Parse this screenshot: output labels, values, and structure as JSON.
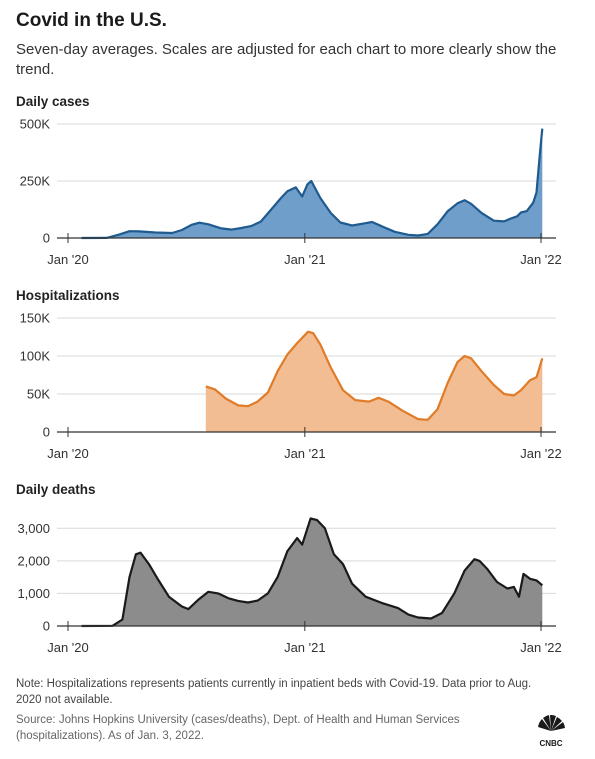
{
  "title": "Covid in the U.S.",
  "subtitle": "Seven-day averages. Scales are adjusted for each chart to more clearly show the trend.",
  "note": "Note: Hospitalizations represents patients currently in inpatient beds with Covid-19. Data prior to Aug. 2020 not available.",
  "source": "Source: Johns Hopkins University (cases/deaths), Dept. of Health and Human Services (hospitalizations). As of Jan. 3, 2022.",
  "logo_text": "CNBC",
  "chart_data": [
    {
      "type": "area",
      "title": "Daily cases",
      "color_line": "#1f5b8f",
      "color_fill": "#6e9ec9",
      "x_ticks": [
        "Jan '20",
        "Jan '21",
        "Jan '22"
      ],
      "x_tick_dates": [
        "2020-01-01",
        "2021-01-01",
        "2022-01-01"
      ],
      "y_ticks": [
        0,
        250000,
        500000
      ],
      "y_tick_labels": [
        "0",
        "250K",
        "500K"
      ],
      "ylim": [
        0,
        500000
      ],
      "xlim": [
        "2020-01-01",
        "2022-01-03"
      ],
      "grid": true,
      "points": [
        [
          "2020-01-22",
          0
        ],
        [
          "2020-03-01",
          500
        ],
        [
          "2020-03-20",
          15000
        ],
        [
          "2020-04-05",
          30000
        ],
        [
          "2020-04-20",
          29000
        ],
        [
          "2020-05-15",
          24000
        ],
        [
          "2020-06-10",
          22000
        ],
        [
          "2020-06-25",
          35000
        ],
        [
          "2020-07-10",
          58000
        ],
        [
          "2020-07-22",
          67000
        ],
        [
          "2020-08-05",
          60000
        ],
        [
          "2020-08-25",
          42000
        ],
        [
          "2020-09-10",
          37000
        ],
        [
          "2020-09-25",
          44000
        ],
        [
          "2020-10-10",
          52000
        ],
        [
          "2020-10-25",
          72000
        ],
        [
          "2020-11-10",
          125000
        ],
        [
          "2020-11-25",
          175000
        ],
        [
          "2020-12-05",
          205000
        ],
        [
          "2020-12-18",
          222000
        ],
        [
          "2020-12-28",
          182000
        ],
        [
          "2021-01-05",
          235000
        ],
        [
          "2021-01-11",
          250000
        ],
        [
          "2021-01-25",
          175000
        ],
        [
          "2021-02-10",
          110000
        ],
        [
          "2021-02-25",
          68000
        ],
        [
          "2021-03-15",
          55000
        ],
        [
          "2021-04-05",
          65000
        ],
        [
          "2021-04-15",
          70000
        ],
        [
          "2021-05-01",
          50000
        ],
        [
          "2021-05-20",
          27000
        ],
        [
          "2021-06-10",
          14000
        ],
        [
          "2021-06-25",
          11000
        ],
        [
          "2021-07-10",
          18000
        ],
        [
          "2021-07-25",
          60000
        ],
        [
          "2021-08-10",
          118000
        ],
        [
          "2021-08-25",
          152000
        ],
        [
          "2021-09-05",
          166000
        ],
        [
          "2021-09-15",
          150000
        ],
        [
          "2021-10-01",
          110000
        ],
        [
          "2021-10-20",
          76000
        ],
        [
          "2021-11-05",
          73000
        ],
        [
          "2021-11-15",
          85000
        ],
        [
          "2021-11-25",
          95000
        ],
        [
          "2021-12-01",
          112000
        ],
        [
          "2021-12-10",
          118000
        ],
        [
          "2021-12-20",
          155000
        ],
        [
          "2021-12-25",
          200000
        ],
        [
          "2021-12-30",
          360000
        ],
        [
          "2022-01-03",
          480000
        ]
      ]
    },
    {
      "type": "area",
      "title": "Hospitalizations",
      "color_line": "#e07b28",
      "color_fill": "#f2bd92",
      "x_ticks": [
        "Jan '20",
        "Jan '21",
        "Jan '22"
      ],
      "x_tick_dates": [
        "2020-01-01",
        "2021-01-01",
        "2022-01-01"
      ],
      "y_ticks": [
        0,
        50000,
        100000,
        150000
      ],
      "y_tick_labels": [
        "0",
        "50K",
        "100K",
        "150K"
      ],
      "ylim": [
        0,
        150000
      ],
      "xlim": [
        "2020-01-01",
        "2022-01-03"
      ],
      "grid": true,
      "points": [
        [
          "2020-08-01",
          60000
        ],
        [
          "2020-08-15",
          56000
        ],
        [
          "2020-09-01",
          44000
        ],
        [
          "2020-09-20",
          35000
        ],
        [
          "2020-10-05",
          34000
        ],
        [
          "2020-10-20",
          40000
        ],
        [
          "2020-11-05",
          52000
        ],
        [
          "2020-11-20",
          80000
        ],
        [
          "2020-12-05",
          102000
        ],
        [
          "2020-12-20",
          117000
        ],
        [
          "2021-01-06",
          132000
        ],
        [
          "2021-01-14",
          130000
        ],
        [
          "2021-01-25",
          115000
        ],
        [
          "2021-02-10",
          85000
        ],
        [
          "2021-03-01",
          55000
        ],
        [
          "2021-03-20",
          42000
        ],
        [
          "2021-04-10",
          40000
        ],
        [
          "2021-04-25",
          45000
        ],
        [
          "2021-05-10",
          40000
        ],
        [
          "2021-06-01",
          28000
        ],
        [
          "2021-06-25",
          17000
        ],
        [
          "2021-07-10",
          16000
        ],
        [
          "2021-07-25",
          30000
        ],
        [
          "2021-08-10",
          65000
        ],
        [
          "2021-08-25",
          92000
        ],
        [
          "2021-09-05",
          100000
        ],
        [
          "2021-09-15",
          97000
        ],
        [
          "2021-10-01",
          80000
        ],
        [
          "2021-10-20",
          62000
        ],
        [
          "2021-11-05",
          50000
        ],
        [
          "2021-11-20",
          48000
        ],
        [
          "2021-12-01",
          55000
        ],
        [
          "2021-12-15",
          68000
        ],
        [
          "2021-12-25",
          72000
        ],
        [
          "2022-01-03",
          97000
        ]
      ]
    },
    {
      "type": "area",
      "title": "Daily deaths",
      "color_line": "#1a1a1a",
      "color_fill": "#8c8c8c",
      "x_ticks": [
        "Jan '20",
        "Jan '21",
        "Jan '22"
      ],
      "x_tick_dates": [
        "2020-01-01",
        "2021-01-01",
        "2022-01-01"
      ],
      "y_ticks": [
        0,
        1000,
        2000,
        3000
      ],
      "y_tick_labels": [
        "0",
        "1,000",
        "2,000",
        "3,000"
      ],
      "ylim": [
        0,
        3500
      ],
      "xlim": [
        "2020-01-01",
        "2022-01-03"
      ],
      "grid": true,
      "points": [
        [
          "2020-01-22",
          0
        ],
        [
          "2020-03-10",
          5
        ],
        [
          "2020-03-25",
          200
        ],
        [
          "2020-04-05",
          1500
        ],
        [
          "2020-04-15",
          2200
        ],
        [
          "2020-04-22",
          2250
        ],
        [
          "2020-05-05",
          1900
        ],
        [
          "2020-05-20",
          1400
        ],
        [
          "2020-06-05",
          900
        ],
        [
          "2020-06-25",
          600
        ],
        [
          "2020-07-05",
          520
        ],
        [
          "2020-07-20",
          800
        ],
        [
          "2020-08-05",
          1050
        ],
        [
          "2020-08-20",
          1000
        ],
        [
          "2020-09-05",
          850
        ],
        [
          "2020-09-20",
          770
        ],
        [
          "2020-10-05",
          720
        ],
        [
          "2020-10-20",
          780
        ],
        [
          "2020-11-05",
          1000
        ],
        [
          "2020-11-20",
          1500
        ],
        [
          "2020-12-05",
          2300
        ],
        [
          "2020-12-20",
          2700
        ],
        [
          "2020-12-28",
          2500
        ],
        [
          "2021-01-10",
          3300
        ],
        [
          "2021-01-20",
          3250
        ],
        [
          "2021-02-01",
          3000
        ],
        [
          "2021-02-15",
          2200
        ],
        [
          "2021-03-01",
          1900
        ],
        [
          "2021-03-15",
          1300
        ],
        [
          "2021-04-05",
          900
        ],
        [
          "2021-05-01",
          700
        ],
        [
          "2021-05-25",
          550
        ],
        [
          "2021-06-10",
          350
        ],
        [
          "2021-06-25",
          260
        ],
        [
          "2021-07-15",
          230
        ],
        [
          "2021-08-01",
          400
        ],
        [
          "2021-08-20",
          1000
        ],
        [
          "2021-09-05",
          1700
        ],
        [
          "2021-09-20",
          2050
        ],
        [
          "2021-09-28",
          2000
        ],
        [
          "2021-10-10",
          1750
        ],
        [
          "2021-10-25",
          1350
        ],
        [
          "2021-11-10",
          1150
        ],
        [
          "2021-11-20",
          1200
        ],
        [
          "2021-11-28",
          900
        ],
        [
          "2021-12-05",
          1600
        ],
        [
          "2021-12-15",
          1450
        ],
        [
          "2021-12-25",
          1400
        ],
        [
          "2022-01-03",
          1250
        ]
      ]
    }
  ]
}
